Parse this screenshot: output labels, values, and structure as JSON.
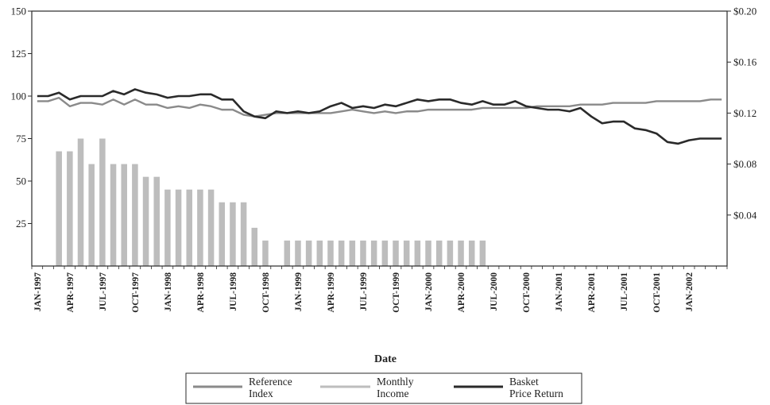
{
  "chart_data": {
    "type": "line",
    "xlabel": "Date",
    "ylim_left": [
      0,
      150
    ],
    "ylim_right": [
      0,
      0.2
    ],
    "left_ticks": [
      "150",
      "125",
      "100",
      "75",
      "50",
      "25"
    ],
    "left_tick_values": [
      150,
      125,
      100,
      75,
      50,
      25
    ],
    "right_ticks": [
      "$0.20",
      "$0.16",
      "$0.12",
      "$0.08",
      "$0.04"
    ],
    "right_tick_values": [
      0.2,
      0.16,
      0.12,
      0.08,
      0.04
    ],
    "x_tick_labels": [
      "JAN-1997",
      "APR-1997",
      "JUL-1997",
      "OCT-1997",
      "JAN-1998",
      "APR-1998",
      "JUL-1998",
      "OCT-1998",
      "JAN-1999",
      "APR-1999",
      "JUL-1999",
      "OCT-1999",
      "JAN-2000",
      "APR-2000",
      "JUL-2000",
      "OCT-2000",
      "JAN-2001",
      "APR-2001",
      "JUL-2001",
      "OCT-2001",
      "JAN-2002"
    ],
    "x_start": "1997-01",
    "x_end": "2002-03",
    "grid": false,
    "legend_position": "bottom-center",
    "colors": {
      "reference": "#8a8a8a",
      "monthly": "#bdbdbd",
      "basket": "#2a2a2a",
      "bars": "#bdbdbd"
    },
    "series": [
      {
        "name": "Reference Index",
        "axis": "left",
        "values": [
          97,
          97,
          99,
          94,
          96,
          96,
          95,
          98,
          95,
          98,
          95,
          95,
          93,
          94,
          93,
          95,
          94,
          92,
          92,
          89,
          88,
          89,
          90,
          90,
          90,
          90,
          90,
          90,
          91,
          92,
          91,
          90,
          91,
          90,
          91,
          91,
          92,
          92,
          92,
          92,
          92,
          93,
          93,
          93,
          93,
          93,
          94,
          94,
          94,
          94,
          95,
          95,
          95,
          96,
          96,
          96,
          96,
          97,
          97,
          97,
          97,
          97,
          98,
          98
        ]
      },
      {
        "name": "Monthly Income",
        "axis": "right",
        "values": [
          null,
          null,
          0.09,
          0.09,
          0.1,
          0.08,
          0.1,
          0.08,
          0.08,
          0.08,
          0.07,
          0.07,
          0.06,
          0.06,
          0.06,
          0.06,
          0.06,
          0.05,
          0.05,
          0.05,
          0.03,
          0.02,
          null,
          0.02,
          0.02,
          0.02,
          0.02,
          0.02,
          0.02,
          0.02,
          0.02,
          0.02,
          0.02,
          0.02,
          0.02,
          0.02,
          0.02,
          0.02,
          0.02,
          0.02,
          0.02,
          0.02,
          null,
          null,
          null,
          null,
          null,
          null,
          null,
          null,
          null,
          null,
          null,
          null,
          null,
          null,
          null,
          null,
          null,
          null,
          null,
          null,
          null,
          null
        ]
      },
      {
        "name": "Basket Price Return",
        "axis": "left",
        "values": [
          100,
          100,
          102,
          98,
          100,
          100,
          100,
          103,
          101,
          104,
          102,
          101,
          99,
          100,
          100,
          101,
          101,
          98,
          98,
          91,
          88,
          87,
          91,
          90,
          91,
          90,
          91,
          94,
          96,
          93,
          94,
          93,
          95,
          94,
          96,
          98,
          97,
          98,
          98,
          96,
          95,
          97,
          95,
          95,
          97,
          94,
          93,
          92,
          92,
          91,
          93,
          88,
          84,
          85,
          85,
          81,
          80,
          78,
          73,
          72,
          74,
          75,
          75,
          75
        ]
      }
    ],
    "legend": [
      {
        "label_line1": "Reference",
        "label_line2": "Index"
      },
      {
        "label_line1": "Monthly",
        "label_line2": "Income"
      },
      {
        "label_line1": "Basket",
        "label_line2": "Price Return"
      }
    ]
  }
}
